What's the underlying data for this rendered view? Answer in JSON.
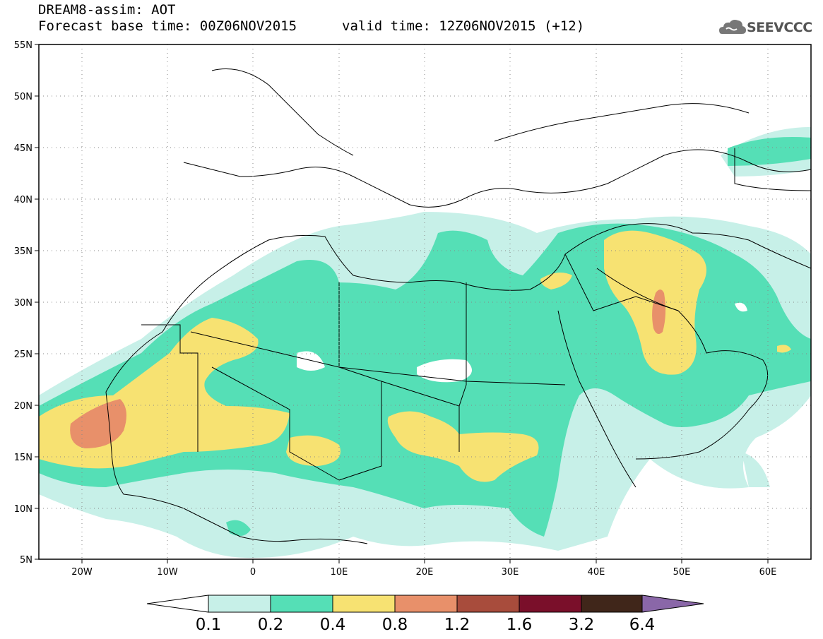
{
  "header": {
    "title": "DREAM8-assim: AOT",
    "base_time": "Forecast base time: 00Z06NOV2015",
    "valid_time": "valid time: 12Z06NOV2015 (+12)"
  },
  "logo": {
    "text": "SEEVCCC",
    "icon": "cloud-icon"
  },
  "map": {
    "lat_labels": [
      "55N",
      "50N",
      "45N",
      "40N",
      "35N",
      "30N",
      "25N",
      "20N",
      "15N",
      "10N",
      "5N"
    ],
    "lon_labels": [
      "20W",
      "10W",
      "0",
      "10E",
      "20E",
      "30E",
      "40E",
      "50E",
      "60E"
    ],
    "lon_range": [
      -25,
      65
    ],
    "lat_range": [
      5,
      55
    ],
    "gridlines": "dotted"
  },
  "colorbar": {
    "ticks": [
      "0.1",
      "0.2",
      "0.4",
      "0.8",
      "1.2",
      "1.6",
      "3.2",
      "6.4"
    ],
    "colors": [
      "#ffffff",
      "#c7f0e8",
      "#55dfb6",
      "#f7e272",
      "#e8906a",
      "#a84c3c",
      "#7a0f2a",
      "#40261a",
      "#8a67a8"
    ]
  },
  "chart_data": {
    "type": "heatmap",
    "title": "DREAM8-assim: AOT",
    "variable": "AOT",
    "levels": [
      0.1,
      0.2,
      0.4,
      0.8,
      1.2,
      1.6,
      3.2,
      6.4
    ],
    "xlim": [
      -25,
      65
    ],
    "ylim": [
      5,
      55
    ]
  }
}
